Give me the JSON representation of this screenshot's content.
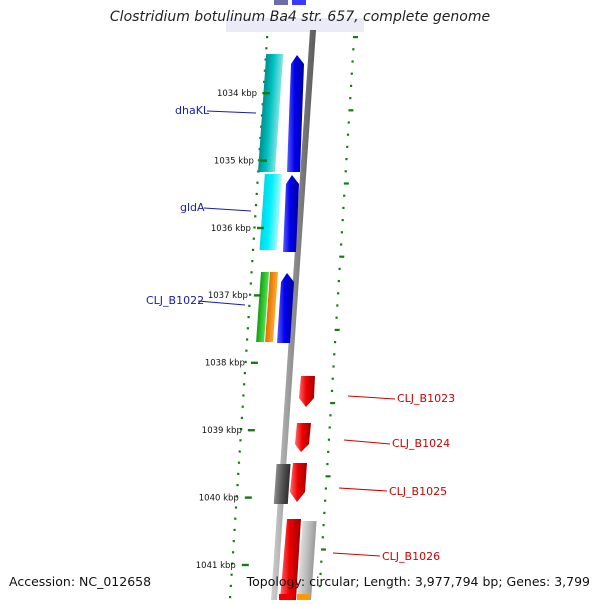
{
  "title": "Clostridium botulinum Ba4 str. 657, complete genome",
  "footer": {
    "accession": "Accession: NC_012658",
    "stats": "Topology: circular; Length: 3,977,794 bp; Genes: 3,799"
  },
  "ticks": [
    "1034 kbp",
    "1035 kbp",
    "1036 kbp",
    "1037 kbp",
    "1038 kbp",
    "1039 kbp",
    "1040 kbp",
    "1041 kbp"
  ],
  "labels_left": [
    "dhaKL",
    "gldA",
    "CLJ_B1022"
  ],
  "labels_right": [
    "CLJ_B1023",
    "CLJ_B1024",
    "CLJ_B1025",
    "CLJ_B1026"
  ],
  "colors": {
    "forward_label": "#1a1aa8",
    "reverse_label": "#cc0000",
    "cds_forward": "#0a0aff",
    "cds_reverse": "#ff0a0a",
    "gc_skew": "#1a7a1a",
    "backbone": "#888888"
  }
}
